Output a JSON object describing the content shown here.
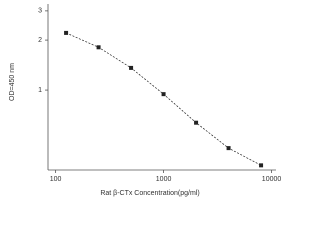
{
  "chart_data": {
    "type": "line",
    "x_label": "Rat β-CTx Concentration(pg/ml)",
    "y_label": "OD=450 nm",
    "x": [
      125,
      250,
      500,
      1000,
      2000,
      4000,
      8000
    ],
    "values": [
      2.21,
      1.81,
      1.36,
      0.945,
      0.636,
      0.447,
      0.352
    ],
    "color": "#222222",
    "line_style": "dashed",
    "xlog": true,
    "ylog": true,
    "xlim": [
      85,
      11000
    ],
    "xticks": [
      100,
      1000,
      10000
    ],
    "ylim": [
      0.33,
      3.3
    ],
    "yticks": [
      1,
      2,
      3
    ]
  }
}
